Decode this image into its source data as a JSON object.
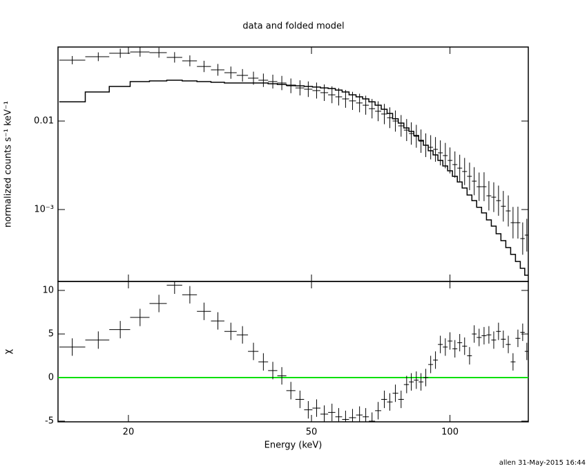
{
  "chart_data": [
    {
      "type": "line",
      "title": "data and folded model",
      "ylabel": "normalized counts s⁻¹ keV⁻¹",
      "xscale": "log",
      "yscale": "log",
      "xlim": [
        14.06,
        148
      ],
      "xticks": [
        20,
        50,
        100
      ],
      "ylim": [
        0.000154,
        0.0686
      ],
      "yticks": [
        0.01,
        {
          "value": 0.001,
          "label": "10⁻³"
        }
      ],
      "x": [
        15.1,
        17.2,
        19.2,
        21.2,
        23.3,
        25.2,
        27.2,
        29.2,
        31.3,
        33.4,
        35.4,
        37.4,
        39.3,
        41.2,
        43.1,
        45.1,
        47.2,
        49.2,
        51.3,
        53.3,
        55.4,
        57.3,
        59.3,
        61.4,
        63.6,
        65.6,
        67.7,
        69.8,
        72.0,
        74.0,
        76.1,
        78.3,
        80.5,
        82.4,
        84.5,
        86.5,
        88.6,
        90.8,
        93.0,
        95.3,
        97.7,
        100,
        102.5,
        105.0,
        107.6,
        110.3,
        112.9,
        115.7,
        118.6,
        121.5,
        124.5,
        127.5,
        130.6,
        133.9,
        137.1,
        140.5,
        143.9,
        146.9
      ],
      "series": [
        {
          "style": "cross",
          "color": "#000000",
          "values": [
            0.0487,
            0.0533,
            0.0583,
            0.0604,
            0.0593,
            0.0524,
            0.0479,
            0.0414,
            0.0379,
            0.0352,
            0.0328,
            0.0305,
            0.0289,
            0.0279,
            0.0269,
            0.025,
            0.0237,
            0.0229,
            0.0221,
            0.0209,
            0.0198,
            0.0188,
            0.0178,
            0.0169,
            0.016,
            0.0151,
            0.0138,
            0.0129,
            0.012,
            0.0109,
            0.01,
            0.00882,
            0.00791,
            0.00723,
            0.00673,
            0.00593,
            0.00533,
            0.00505,
            0.00478,
            0.00437,
            0.00407,
            0.00359,
            0.00322,
            0.00294,
            0.00269,
            0.00237,
            0.00209,
            0.00181,
            0.00181,
            0.00143,
            0.00138,
            0.00126,
            0.00109,
            0.000964,
            0.000711,
            0.000711,
            0.00047,
            0.000514
          ]
        },
        {
          "style": "step",
          "color": "#000000",
          "values": [
            0.0165,
            0.0213,
            0.0246,
            0.0279,
            0.0284,
            0.0289,
            0.0284,
            0.0279,
            0.0274,
            0.0269,
            0.0269,
            0.0269,
            0.0269,
            0.0264,
            0.0259,
            0.0254,
            0.025,
            0.0246,
            0.0242,
            0.0237,
            0.0233,
            0.0224,
            0.0213,
            0.0198,
            0.0188,
            0.0178,
            0.0165,
            0.0151,
            0.0136,
            0.0122,
            0.0106,
            0.00947,
            0.00835,
            0.00764,
            0.00686,
            0.00605,
            0.00533,
            0.00462,
            0.00414,
            0.00359,
            0.00311,
            0.00274,
            0.00237,
            0.00205,
            0.00175,
            0.00146,
            0.00126,
            0.00106,
            0.000916,
            0.000764,
            0.000649,
            0.000533,
            0.000445,
            0.000372,
            0.000311,
            0.000259,
            0.000217,
            0.000181
          ]
        }
      ]
    },
    {
      "type": "scatter",
      "xlabel": "Energy (keV)",
      "ylabel": "χ",
      "xscale": "log",
      "xlim": [
        14.06,
        148
      ],
      "xticks": [
        20,
        50,
        100
      ],
      "ylim": [
        -5.08,
        11.03
      ],
      "yticks": [
        -5,
        0,
        5,
        10
      ],
      "hline": {
        "value": 0,
        "color": "#00e000"
      },
      "x": [
        15.1,
        17.2,
        19.2,
        21.2,
        23.3,
        25.2,
        27.2,
        29.2,
        31.3,
        33.4,
        35.4,
        37.4,
        39.3,
        41.2,
        43.1,
        45.1,
        47.2,
        49.2,
        51.3,
        53.3,
        55.4,
        57.3,
        59.3,
        61.4,
        63.6,
        65.6,
        67.7,
        69.8,
        72.0,
        74.0,
        76.1,
        78.3,
        80.5,
        82.4,
        84.5,
        86.5,
        88.6,
        90.8,
        93.0,
        95.3,
        97.7,
        100,
        102.5,
        105.0,
        107.6,
        110.3,
        112.9,
        115.7,
        118.6,
        121.5,
        124.5,
        127.5,
        130.6,
        133.9,
        137.1,
        140.5,
        143.9,
        146.9
      ],
      "series": [
        {
          "style": "cross",
          "color": "#000000",
          "values": [
            3.5,
            4.3,
            5.5,
            6.9,
            8.5,
            10.6,
            9.5,
            7.6,
            6.5,
            5.3,
            4.9,
            3.0,
            1.8,
            0.8,
            0.2,
            -1.5,
            -2.5,
            -3.7,
            -3.5,
            -4.2,
            -4.0,
            -4.5,
            -4.8,
            -4.6,
            -4.3,
            -4.5,
            -5.0,
            -3.8,
            -2.5,
            -2.8,
            -1.8,
            -2.5,
            -0.8,
            -0.5,
            -0.3,
            -0.5,
            0.0,
            1.5,
            2.0,
            3.8,
            3.5,
            4.2,
            3.3,
            4.0,
            3.6,
            2.5,
            5.0,
            4.6,
            4.8,
            4.9,
            4.3,
            5.3,
            4.4,
            3.8,
            1.8,
            4.5,
            5.2,
            3.0
          ]
        }
      ]
    }
  ],
  "footer": "allen 31-May-2015 16:44"
}
